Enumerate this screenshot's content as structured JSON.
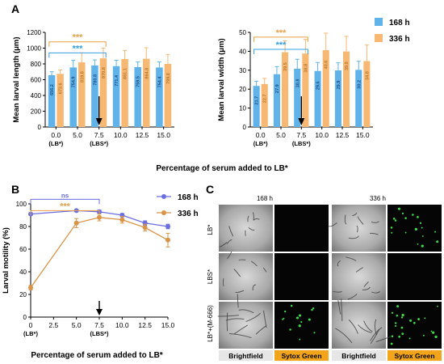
{
  "colors": {
    "series_168": "#5fb3e8",
    "series_336": "#f7b873",
    "star_blue": "#3aa0e0",
    "star_orange": "#e9a04a",
    "line_168": "#6a6ee0",
    "line_336": "#d99447",
    "ns_blue": "#6a6ee0",
    "label_bg_168": "#1f4f8a",
    "label_bg_336": "#b8782f",
    "legend_bar_brightfield": "#e6e6e6",
    "legend_bar_sytox": "#f2a51a"
  },
  "chart_data": [
    {
      "panel_label": "A",
      "type": "bar",
      "categories": [
        "0.0",
        "5.0",
        "7.5",
        "10.0",
        "12.5",
        "15.0"
      ],
      "category_sublabels": [
        "(LB*)",
        "",
        "(LBS*)",
        "",
        "",
        ""
      ],
      "series": [
        {
          "name": "168 h",
          "values": [
            656.2,
            754.9,
            780.8,
            771.4,
            759.5,
            754.4
          ],
          "errors": [
            45,
            90,
            70,
            75,
            65,
            70
          ]
        },
        {
          "name": "336 h",
          "values": [
            673.6,
            819.8,
            870.8,
            861.1,
            864.8,
            799.8
          ],
          "errors": [
            50,
            120,
            130,
            110,
            140,
            120
          ]
        }
      ],
      "value_labels_168": [
        "656.2",
        "754.9",
        "780.8",
        "771.4",
        "759.5",
        "754.4"
      ],
      "value_labels_336": [
        "673.6",
        "819.8",
        "870.8",
        "861.1",
        "864.8",
        "799.8"
      ],
      "ylabel": "Mean larval length (μm)",
      "ylim": [
        0,
        1200
      ],
      "yticks": [
        "0",
        "200",
        "400",
        "600",
        "800",
        "1000",
        "1200"
      ],
      "significance": [
        {
          "from": "0.0",
          "to": "7.5",
          "label": "***",
          "color": "orange",
          "level": 1080
        },
        {
          "from": "0.0",
          "to": "7.5",
          "label": "***",
          "color": "blue",
          "level": 940
        }
      ],
      "arrow_at": "7.5"
    },
    {
      "panel_label": "",
      "type": "bar",
      "categories": [
        "0.0",
        "5.0",
        "7.5",
        "10.0",
        "12.5",
        "15.0"
      ],
      "category_sublabels": [
        "(LB*)",
        "",
        "(LBS*)",
        "",
        "",
        ""
      ],
      "series": [
        {
          "name": "168 h",
          "values": [
            21.7,
            27.9,
            30.8,
            29.6,
            29.9,
            30.2
          ],
          "errors": [
            2.5,
            4,
            5,
            4.5,
            4,
            4.5
          ]
        },
        {
          "name": "336 h",
          "values": [
            22.7,
            39.5,
            38.8,
            40.6,
            39.9,
            34.8
          ],
          "errors": [
            3,
            6,
            7.5,
            9,
            8,
            8.5
          ]
        }
      ],
      "value_labels_168": [
        "21.7",
        "27.9",
        "30.8",
        "29.6",
        "29.9",
        "30.2"
      ],
      "value_labels_336": [
        "22.7",
        "39.5",
        "38.8",
        "40.6",
        "39.9",
        "34.8"
      ],
      "ylabel": "Mean larval width (μm)",
      "ylim": [
        0,
        50
      ],
      "yticks": [
        "0",
        "10",
        "20",
        "30",
        "40",
        "50"
      ],
      "significance": [
        {
          "from": "0.0",
          "to": "7.5",
          "label": "***",
          "color": "orange",
          "level": 47.5
        },
        {
          "from": "0.0",
          "to": "7.5",
          "label": "***",
          "color": "blue",
          "level": 41
        }
      ],
      "arrow_at": "7.5"
    },
    {
      "panel_label": "B",
      "type": "line",
      "x": [
        0,
        5,
        7.5,
        10,
        12.5,
        15
      ],
      "series": [
        {
          "name": "168 h",
          "values": [
            91,
            94,
            93,
            90,
            83,
            80
          ],
          "errors": [
            1,
            1,
            1.5,
            1.5,
            2,
            2
          ]
        },
        {
          "name": "336 h",
          "values": [
            26,
            83,
            88,
            86,
            79,
            68
          ],
          "errors": [
            2,
            4,
            3,
            3,
            3,
            6
          ]
        }
      ],
      "xticks": [
        "0",
        "2.5",
        "5.0",
        "7.5",
        "10.0",
        "12.5",
        "15.0"
      ],
      "xtick_values": [
        0,
        2.5,
        5,
        7.5,
        10,
        12.5,
        15
      ],
      "xtick_sublabels": {
        "0": "(LB*)",
        "7.5": "(LBS*)"
      },
      "xlim": [
        0,
        15
      ],
      "ylabel": "Larval motility (%)",
      "ylim": [
        0,
        100
      ],
      "yticks": [
        "0",
        "20",
        "40",
        "60",
        "80",
        "100"
      ],
      "significance": [
        {
          "from": 0,
          "to": 7.5,
          "label": "ns",
          "color": "blue",
          "level": 104
        },
        {
          "from": 0,
          "to": 7.5,
          "label": "***",
          "color": "orange",
          "level": 94
        }
      ],
      "arrow_at": 7.5
    }
  ],
  "shared": {
    "xlabel": "Percentage of serum added to LB*",
    "legend_168": "168 h",
    "legend_336": "336 h"
  },
  "panel_c": {
    "panel_label": "C",
    "col_labels": [
      "168 h",
      "336 h"
    ],
    "row_labels": [
      "LB*",
      "LBS*",
      "LB*+(M-666)"
    ],
    "bottom_labels": [
      "Brightfield",
      "Sytox Green",
      "Brightfield",
      "Sytox Green"
    ]
  }
}
